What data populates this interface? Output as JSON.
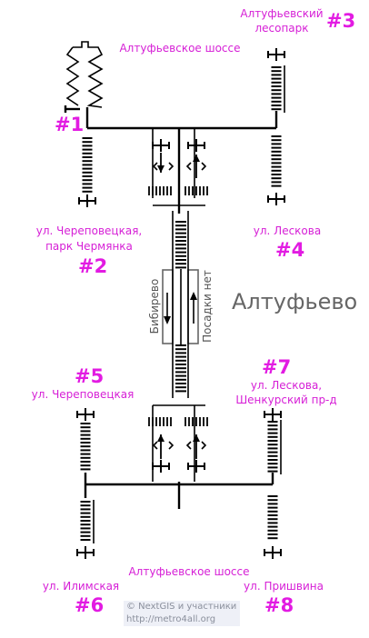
{
  "station_name": "Алтуфьево",
  "streets": {
    "top": "Алтуфьевское шоссе",
    "bottom": "Алтуфьевское шоссе"
  },
  "exits": [
    {
      "number": "#1",
      "label_lines": []
    },
    {
      "number": "#2",
      "label_lines": [
        "ул. Череповецкая,",
        "парк Чермянка"
      ]
    },
    {
      "number": "#3",
      "label_lines": [
        "Алтуфьевский",
        "лесопарк"
      ]
    },
    {
      "number": "#4",
      "label_lines": [
        "ул. Лескова"
      ]
    },
    {
      "number": "#5",
      "label_lines": [
        "ул. Череповецкая"
      ]
    },
    {
      "number": "#6",
      "label_lines": [
        "ул. Илимская"
      ]
    },
    {
      "number": "#7",
      "label_lines": [
        "ул. Лескова,",
        "Шенкурский пр-д"
      ]
    },
    {
      "number": "#8",
      "label_lines": [
        "ул. Пришвина"
      ]
    }
  ],
  "platform": {
    "left_track": "Бибирево",
    "right_track": "Посадки нет"
  },
  "credits": {
    "line1": "© NextGIS и участники",
    "line2": "http://metro4all.org"
  }
}
